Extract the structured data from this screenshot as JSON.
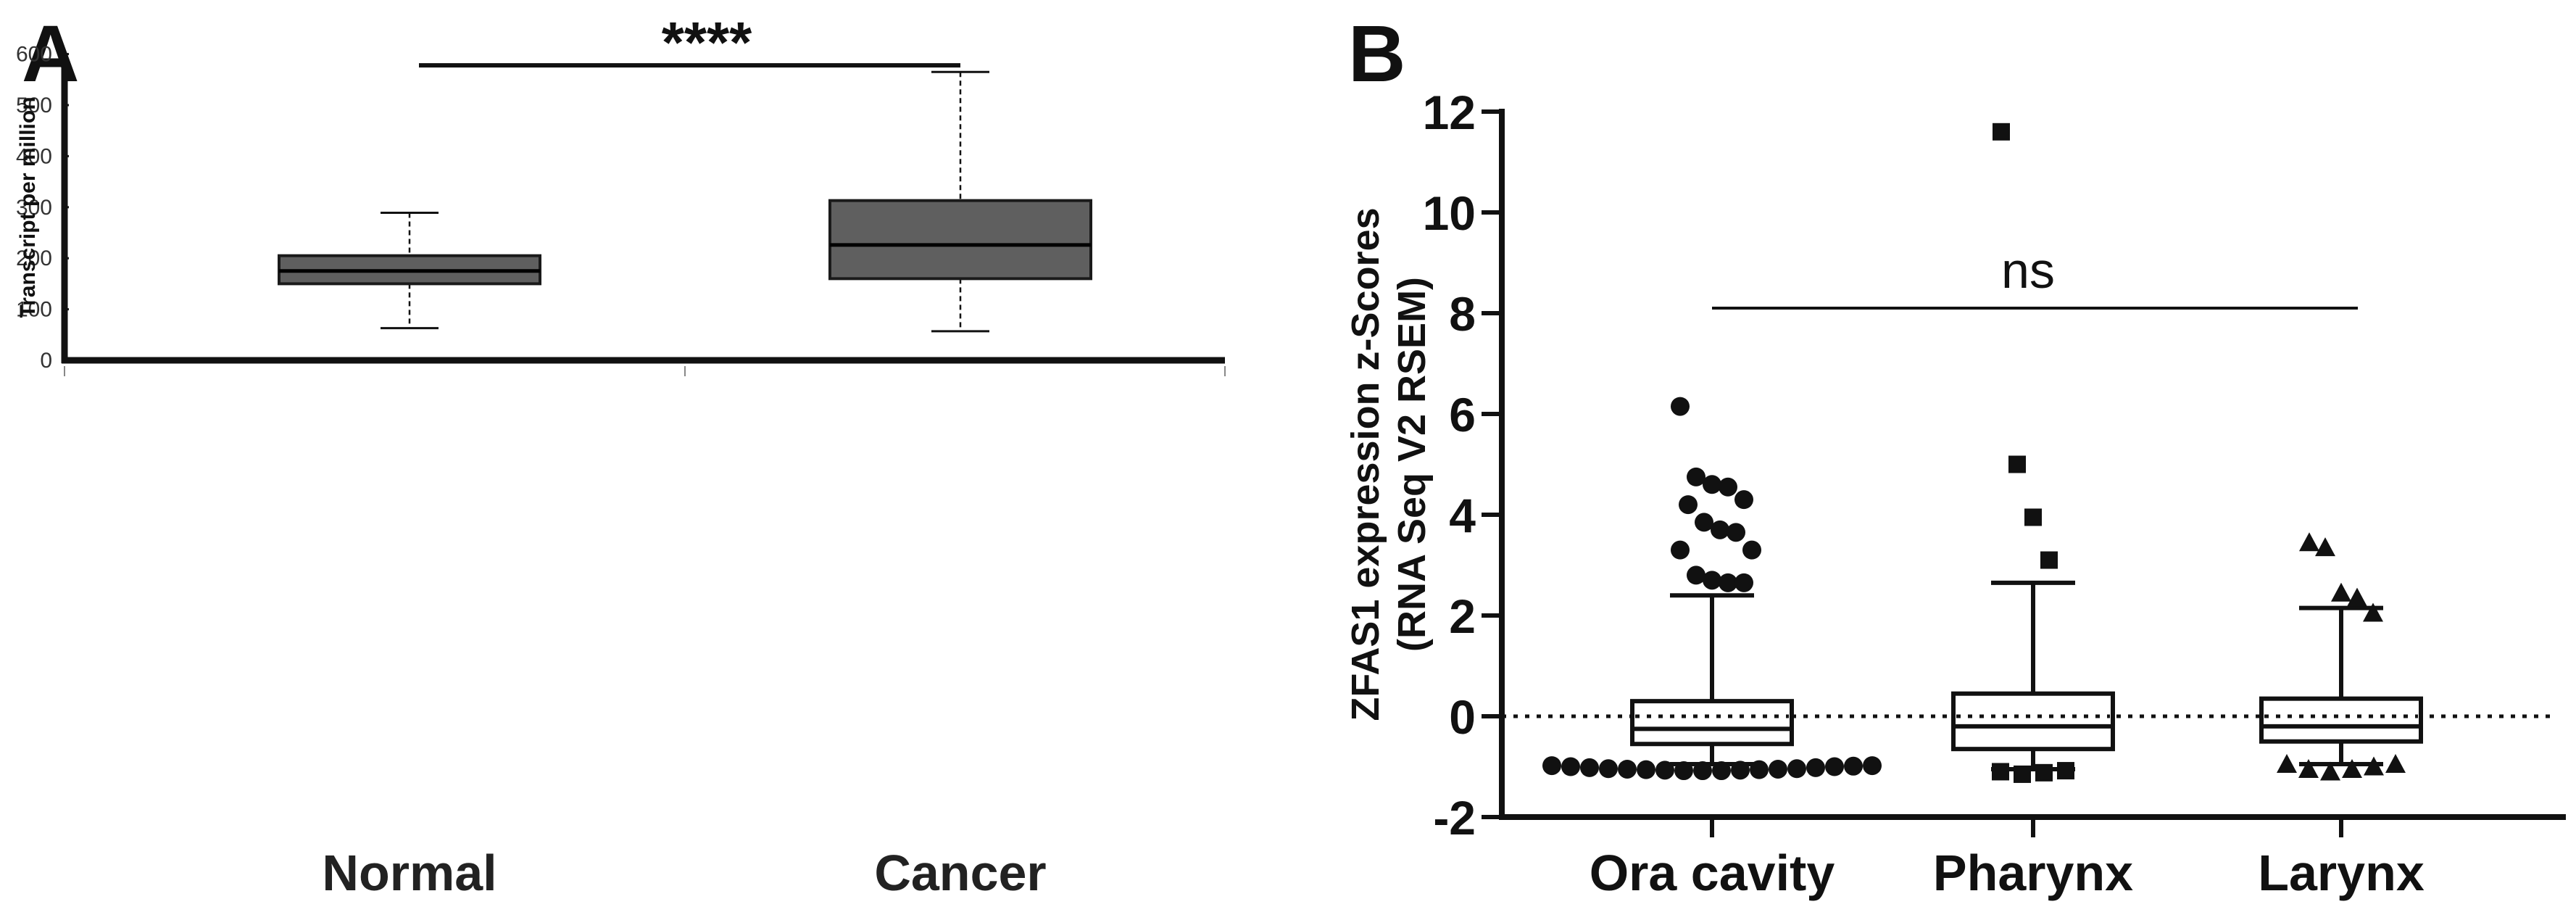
{
  "panels": {
    "a": {
      "label": "A"
    },
    "b": {
      "label": "B"
    }
  },
  "colors": {
    "box_fill_a": "#5f5f5f",
    "box_fill_b": "#ffffff",
    "ink": "#111111",
    "axis_gray": "#888888"
  },
  "chart_data": [
    {
      "type": "boxplot",
      "panel": "A",
      "title": "",
      "xlabel": "",
      "ylabel": "Transcript per million",
      "ylim": [
        0,
        600
      ],
      "yticks": [
        "0",
        "100",
        "200",
        "300",
        "400",
        "500",
        "600"
      ],
      "categories": [
        "Normal",
        "Cancer"
      ],
      "boxes": [
        {
          "name": "Normal",
          "whisker_low": 63,
          "q1": 150,
          "median": 175,
          "q3": 205,
          "whisker_high": 289
        },
        {
          "name": "Cancer",
          "whisker_low": 57,
          "q1": 160,
          "median": 226,
          "q3": 313,
          "whisker_high": 565
        }
      ],
      "significance": {
        "text": "****",
        "between": [
          "Normal",
          "Cancer"
        ],
        "y": 578
      }
    },
    {
      "type": "boxplot",
      "panel": "B",
      "title": "",
      "xlabel": "",
      "ylabel_lines": [
        "ZFAS1 expression z-Scores",
        "(RNA Seq V2 RSEM)"
      ],
      "ylim": [
        -2,
        12
      ],
      "yticks": [
        "-2",
        "0",
        "2",
        "4",
        "6",
        "8",
        "10",
        "12"
      ],
      "reference_line": 0,
      "categories": [
        "Ora cavity",
        "Pharynx",
        "Larynx"
      ],
      "boxes": [
        {
          "name": "Ora cavity",
          "marker": "circle",
          "whisker_low": -0.95,
          "q1": -0.55,
          "median": -0.25,
          "q3": 0.3,
          "whisker_high": 2.4,
          "outliers": [
            6.15,
            4.75,
            4.6,
            4.55,
            4.3,
            4.2,
            3.85,
            3.7,
            3.65,
            3.3,
            3.3,
            2.8,
            2.7,
            2.65,
            2.65
          ],
          "low_outliers": [
            -0.98,
            -1.0,
            -1.02,
            -1.04,
            -1.05,
            -1.06,
            -1.07,
            -1.08,
            -1.08,
            -1.08,
            -1.07,
            -1.06,
            -1.05,
            -1.04,
            -1.02,
            -1.0,
            -0.99,
            -0.98
          ]
        },
        {
          "name": "Pharynx",
          "marker": "square",
          "whisker_low": -1.05,
          "q1": -0.65,
          "median": -0.2,
          "q3": 0.45,
          "whisker_high": 2.65,
          "outliers": [
            11.6,
            5.0,
            3.95,
            3.1
          ],
          "low_outliers": [
            -1.1,
            -1.15,
            -1.12,
            -1.08
          ]
        },
        {
          "name": "Larynx",
          "marker": "triangle",
          "whisker_low": -0.95,
          "q1": -0.5,
          "median": -0.2,
          "q3": 0.35,
          "whisker_high": 2.15,
          "outliers": [
            3.45,
            3.35,
            2.45,
            2.35,
            2.05
          ],
          "low_outliers": [
            -0.95,
            -1.05,
            -1.1,
            -1.05,
            -1.0,
            -0.95
          ]
        }
      ],
      "significance": {
        "text": "ns",
        "between": [
          "Ora cavity",
          "Larynx"
        ],
        "y": 8.1
      }
    }
  ]
}
